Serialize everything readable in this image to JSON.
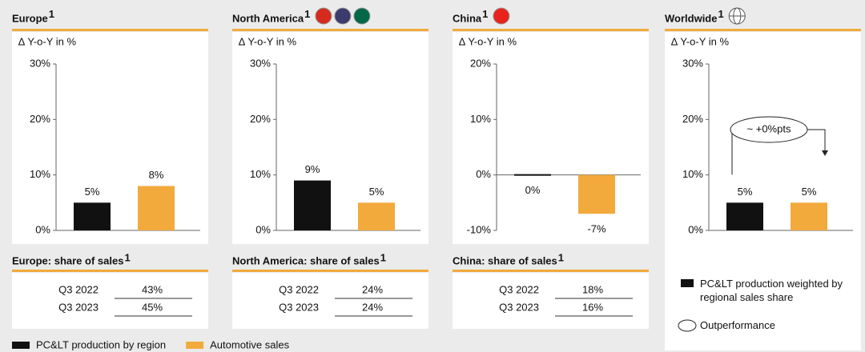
{
  "chart_data": [
    {
      "type": "bar",
      "title": "Europe",
      "footnote": "1",
      "subtitle": "∆ Y-o-Y in %",
      "values": [
        5,
        8
      ],
      "value_labels": [
        "5%",
        "8%"
      ],
      "colors": [
        "#111111",
        "#f2aa3c"
      ],
      "ylim": [
        0,
        30
      ],
      "yticks": [
        {
          "value": 0,
          "label": "0%"
        },
        {
          "value": 10,
          "label": "10%"
        },
        {
          "value": 20,
          "label": "20%"
        },
        {
          "value": 30,
          "label": "30%"
        }
      ],
      "flags": [],
      "share": {
        "title": "Europe: share of sales",
        "footnote": "1",
        "rows": [
          [
            "Q3 2022",
            "43%"
          ],
          [
            "Q3 2023",
            "45%"
          ]
        ]
      }
    },
    {
      "type": "bar",
      "title": "North America",
      "footnote": "1",
      "subtitle": "∆ Y-o-Y in %",
      "values": [
        9,
        5
      ],
      "value_labels": [
        "9%",
        "5%"
      ],
      "colors": [
        "#111111",
        "#f2aa3c"
      ],
      "ylim": [
        0,
        30
      ],
      "yticks": [
        {
          "value": 0,
          "label": "0%"
        },
        {
          "value": 10,
          "label": "10%"
        },
        {
          "value": 20,
          "label": "20%"
        },
        {
          "value": 30,
          "label": "30%"
        }
      ],
      "flags": [
        "#d52b1e",
        "#3c3b6e",
        "#006847"
      ],
      "share": {
        "title": "North America: share of sales",
        "footnote": "1",
        "rows": [
          [
            "Q3 2022",
            "24%"
          ],
          [
            "Q3 2023",
            "24%"
          ]
        ]
      }
    },
    {
      "type": "bar",
      "title": "China",
      "footnote": "1",
      "subtitle": "∆ Y-o-Y in %",
      "values": [
        0,
        -7
      ],
      "value_labels": [
        "0%",
        "-7%"
      ],
      "colors": [
        "#111111",
        "#f2aa3c"
      ],
      "ylim": [
        -10,
        20
      ],
      "yticks": [
        {
          "value": -10,
          "label": "-10%"
        },
        {
          "value": 0,
          "label": "0%"
        },
        {
          "value": 10,
          "label": "10%"
        },
        {
          "value": 20,
          "label": "20%"
        }
      ],
      "flags": [
        "#e8231c"
      ],
      "share": {
        "title": "China: share of sales",
        "footnote": "1",
        "rows": [
          [
            "Q3 2022",
            "18%"
          ],
          [
            "Q3 2023",
            "16%"
          ]
        ]
      }
    },
    {
      "type": "bar",
      "title": "Worldwide",
      "footnote": "1",
      "subtitle": "∆ Y-o-Y in %",
      "values": [
        5,
        5
      ],
      "value_labels": [
        "5%",
        "5%"
      ],
      "colors": [
        "#111111",
        "#f2aa3c"
      ],
      "ylim": [
        0,
        30
      ],
      "yticks": [
        {
          "value": 0,
          "label": "0%"
        },
        {
          "value": 10,
          "label": "10%"
        },
        {
          "value": 20,
          "label": "20%"
        },
        {
          "value": 30,
          "label": "30%"
        }
      ],
      "flags": [
        "globe"
      ],
      "annotation": "~ +0%pts",
      "legend": [
        {
          "name": "PC&LT production weighted by regional sales share",
          "color": "#111111"
        },
        {
          "name": "Outperformance",
          "shape": "ellipse"
        }
      ]
    }
  ],
  "legend": [
    {
      "name": "PC&LT production by region",
      "color": "#111111"
    },
    {
      "name": "Automotive sales",
      "color": "#f2aa3c"
    }
  ]
}
